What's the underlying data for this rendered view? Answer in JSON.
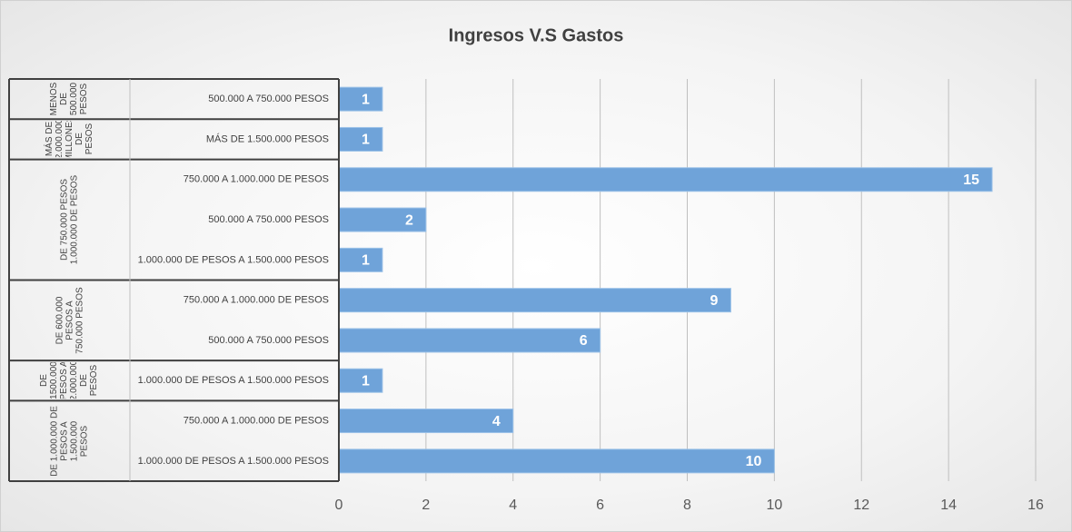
{
  "chart_data": {
    "type": "bar",
    "title": "Ingresos V.S Gastos",
    "color": "#6fa3d9",
    "groups": [
      {
        "name": "MENOS DE 500.000 PESOS",
        "categories": [
          "500.000 A 750.000 PESOS"
        ],
        "values": [
          1
        ]
      },
      {
        "name": "MÁS DE 2.000.000 MILLONES DE PESOS",
        "categories": [
          "MÁS DE 1.500.000 PESOS"
        ],
        "values": [
          1
        ]
      },
      {
        "name": "DE 750.000 PESOS 1.000.000 DE PESOS",
        "categories": [
          "750.000 A 1.000.000 DE PESOS",
          "500.000 A 750.000 PESOS",
          "1.000.000 DE PESOS A 1.500.000 PESOS"
        ],
        "values": [
          15,
          2,
          1
        ]
      },
      {
        "name": "DE 600.000 PESOS A 750.000 PESOS",
        "categories": [
          "750.000 A 1.000.000 DE PESOS",
          "500.000 A 750.000 PESOS"
        ],
        "values": [
          9,
          6
        ]
      },
      {
        "name": "DE 1500.000 PESOS A 2.000.000 DE PESOS",
        "categories": [
          "1.000.000 DE PESOS A 1.500.000 PESOS"
        ],
        "values": [
          1
        ]
      },
      {
        "name": "DE 1.000.000 DE PESOS A 1.500.000 PESOS",
        "categories": [
          "750.000 A 1.000.000 DE PESOS",
          "1.000.000 DE PESOS A 1.500.000 PESOS"
        ],
        "values": [
          4,
          10
        ]
      }
    ],
    "xlim": [
      0,
      16
    ],
    "xticks": [
      0,
      2,
      4,
      6,
      8,
      10,
      12,
      14,
      16
    ],
    "grid": true
  }
}
